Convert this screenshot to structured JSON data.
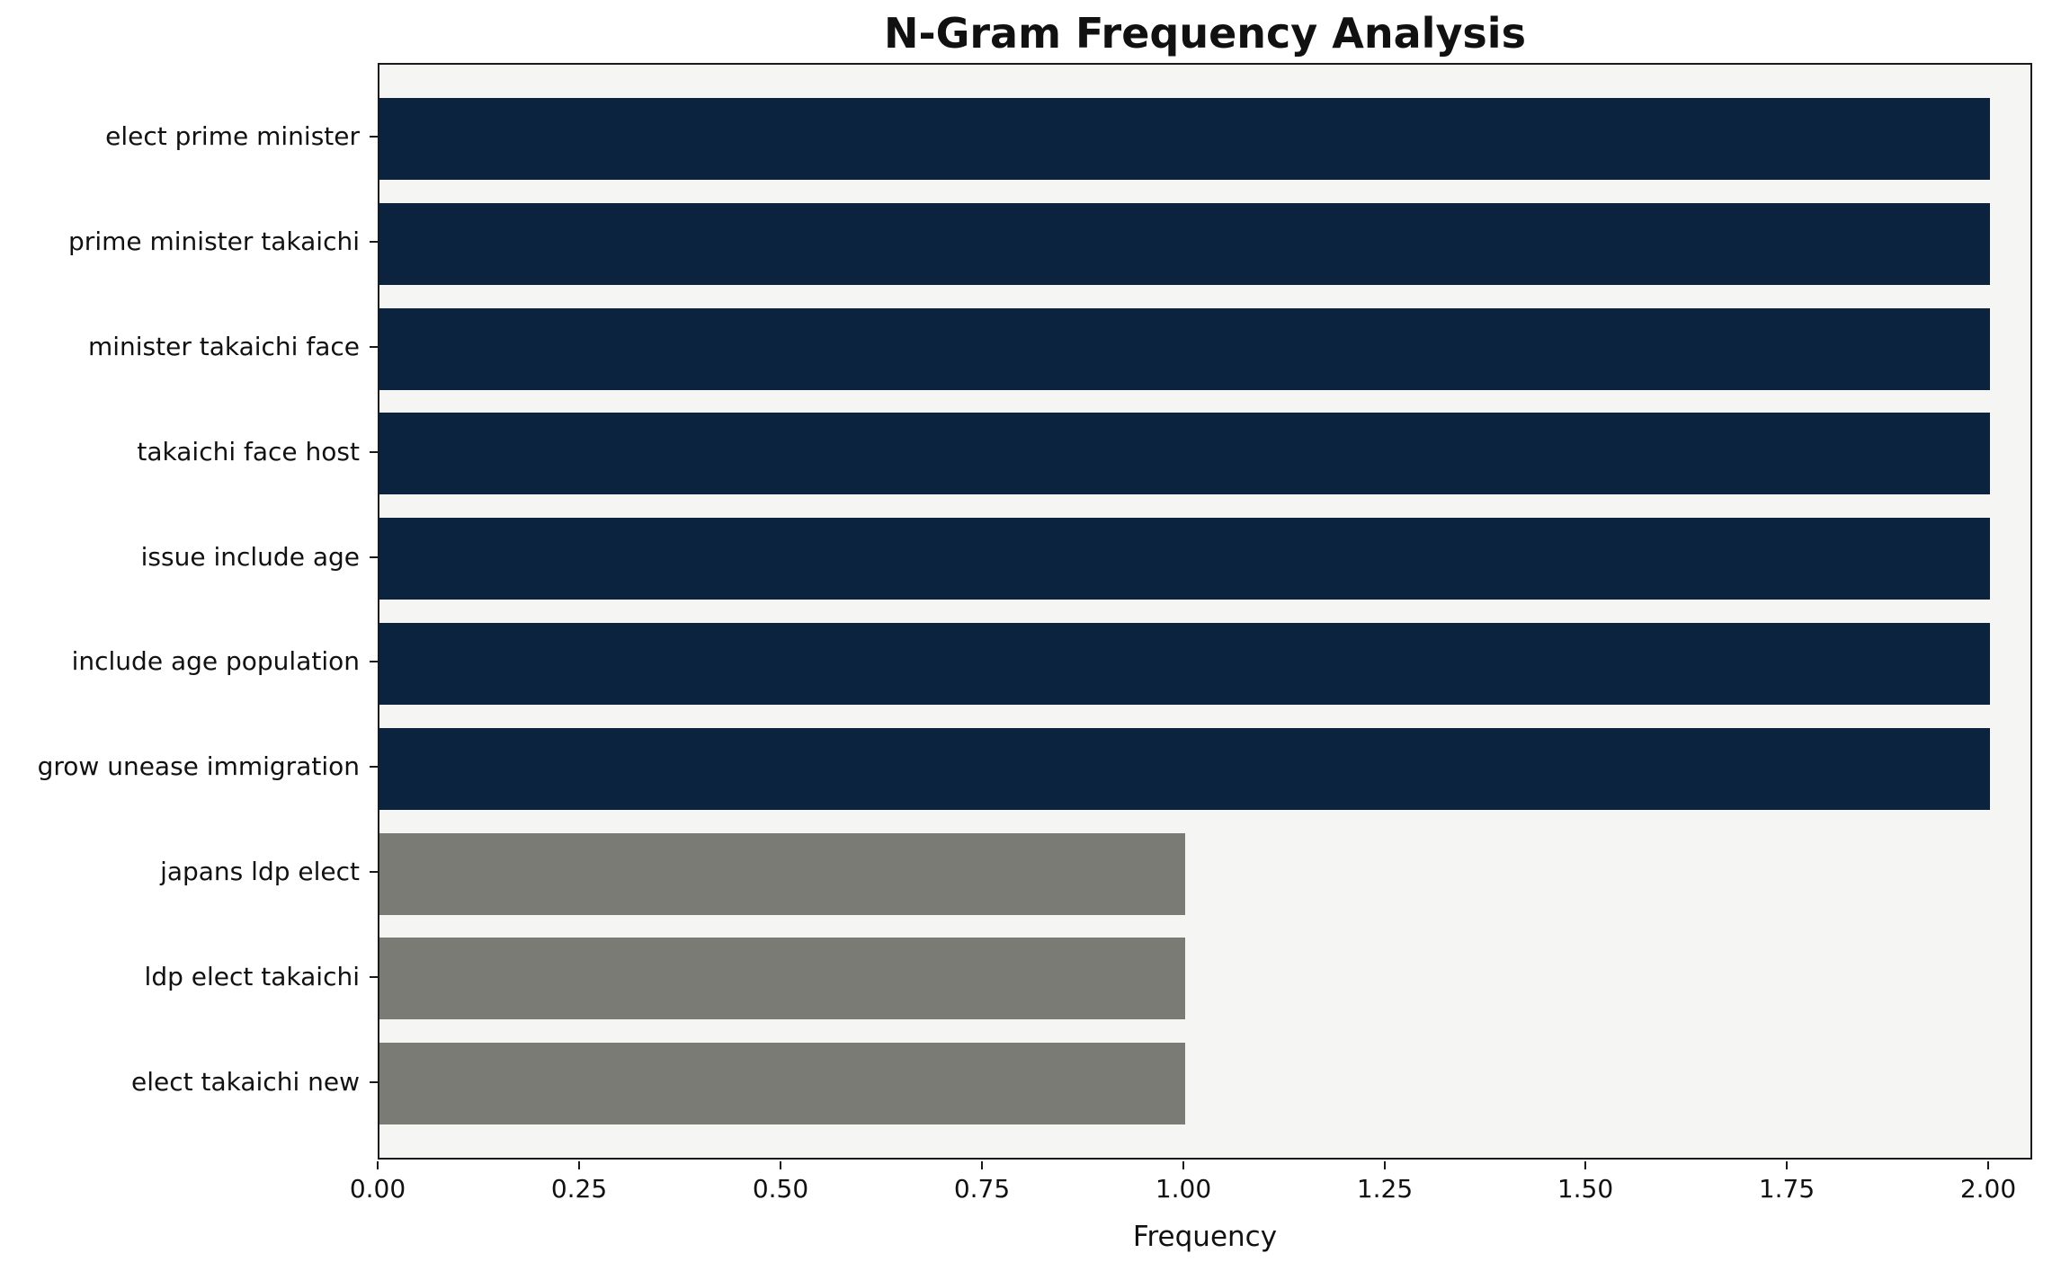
{
  "chart_data": {
    "type": "bar",
    "orientation": "horizontal",
    "title": "N-Gram Frequency Analysis",
    "xlabel": "Frequency",
    "ylabel": "",
    "categories": [
      "elect prime minister",
      "prime minister takaichi",
      "minister takaichi face",
      "takaichi face host",
      "issue include age",
      "include age population",
      "grow unease immigration",
      "japans ldp elect",
      "ldp elect takaichi",
      "elect takaichi new"
    ],
    "values": [
      2,
      2,
      2,
      2,
      2,
      2,
      2,
      1,
      1,
      1
    ],
    "colors": [
      "#0c2340",
      "#0c2340",
      "#0c2340",
      "#0c2340",
      "#0c2340",
      "#0c2340",
      "#0c2340",
      "#7b7b75",
      "#7b7b75",
      "#7b7b75"
    ],
    "xlim": [
      0,
      2.05
    ],
    "xticks": {
      "values": [
        0.0,
        0.25,
        0.5,
        0.75,
        1.0,
        1.25,
        1.5,
        1.75,
        2.0
      ],
      "labels": [
        "0.00",
        "0.25",
        "0.50",
        "0.75",
        "1.00",
        "1.25",
        "1.50",
        "1.75",
        "2.00"
      ]
    },
    "grid": false,
    "legend": "none",
    "plot_background": "#f5f5f4",
    "figure_background": "#ffffff",
    "bar_color_high": "#0c2340",
    "bar_color_low": "#7b7b75"
  }
}
